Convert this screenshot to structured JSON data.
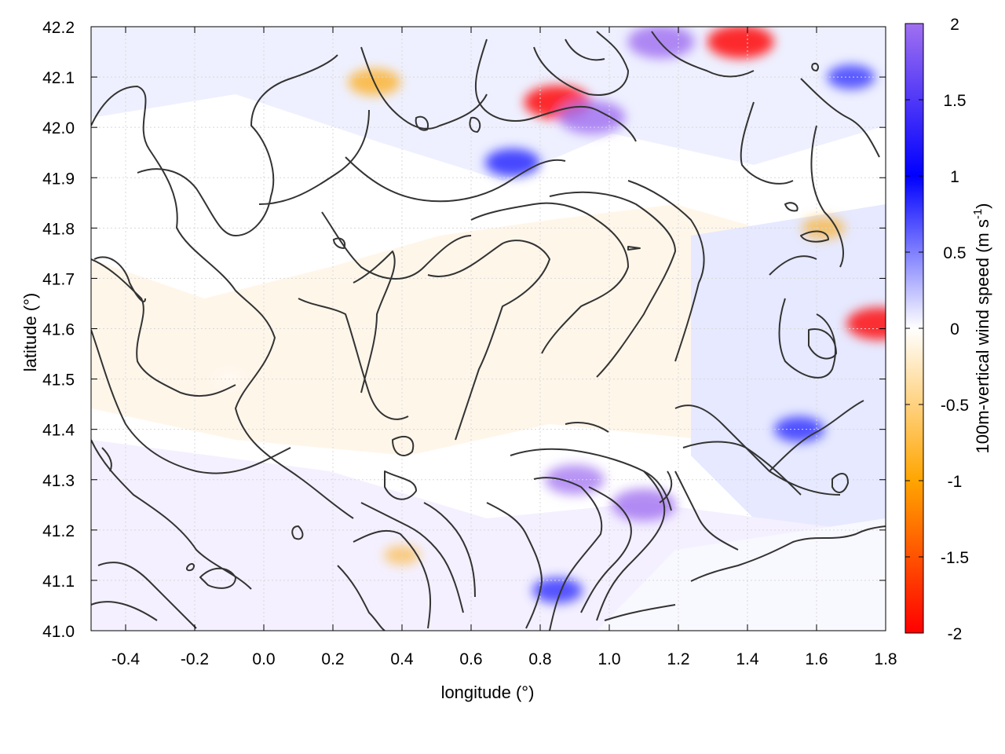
{
  "chart_data": {
    "type": "heatmap",
    "title": "",
    "xlabel": "longitude (°)",
    "ylabel": "latitude (°)",
    "xlim": [
      -0.5,
      1.8
    ],
    "ylim": [
      41.0,
      42.2
    ],
    "x_ticks": [
      "-0.4",
      "-0.2",
      "0.0",
      "0.2",
      "0.4",
      "0.6",
      "0.8",
      "1.0",
      "1.2",
      "1.4",
      "1.6",
      "1.8"
    ],
    "y_ticks": [
      "41.0",
      "41.1",
      "41.2",
      "41.3",
      "41.4",
      "41.5",
      "41.6",
      "41.7",
      "41.8",
      "41.9",
      "42.0",
      "42.1",
      "42.2"
    ],
    "colorbar": {
      "label_main": "100m-vertical wind speed (m s",
      "label_sup": "-1",
      "label_end": ")",
      "range": [
        -2,
        2
      ],
      "ticks": [
        "-2",
        "-1.5",
        "-1",
        "-0.5",
        "0",
        "0.5",
        "1",
        "1.5",
        "2"
      ],
      "colors": {
        "min": "#ff0000",
        "low": "#ffa500",
        "zero": "#ffffff",
        "high": "#0000ff",
        "max": "#a070f0"
      }
    },
    "overlay": "terrain contour lines",
    "contour_color": "#333333",
    "grid": true,
    "hotspots": [
      {
        "lon": 0.85,
        "lat": 42.05,
        "value": -1.9
      },
      {
        "lon": 0.95,
        "lat": 42.02,
        "value": 1.9
      },
      {
        "lon": 1.15,
        "lat": 42.17,
        "value": 1.9
      },
      {
        "lon": 1.38,
        "lat": 42.17,
        "value": -1.9
      },
      {
        "lon": 0.32,
        "lat": 42.09,
        "value": -1.3
      },
      {
        "lon": 0.72,
        "lat": 41.93,
        "value": 1.4
      },
      {
        "lon": 0.9,
        "lat": 41.3,
        "value": 1.6
      },
      {
        "lon": 1.1,
        "lat": 41.25,
        "value": 1.8
      },
      {
        "lon": 1.55,
        "lat": 41.4,
        "value": 1.2
      },
      {
        "lon": 1.62,
        "lat": 41.8,
        "value": -0.9
      },
      {
        "lon": 1.78,
        "lat": 41.61,
        "value": -1.8
      },
      {
        "lon": 0.85,
        "lat": 41.08,
        "value": 1.2
      },
      {
        "lon": 0.4,
        "lat": 41.15,
        "value": -0.6
      },
      {
        "lon": -0.1,
        "lat": 41.5,
        "value": -0.3
      },
      {
        "lon": 1.7,
        "lat": 42.1,
        "value": 1.1
      }
    ]
  }
}
